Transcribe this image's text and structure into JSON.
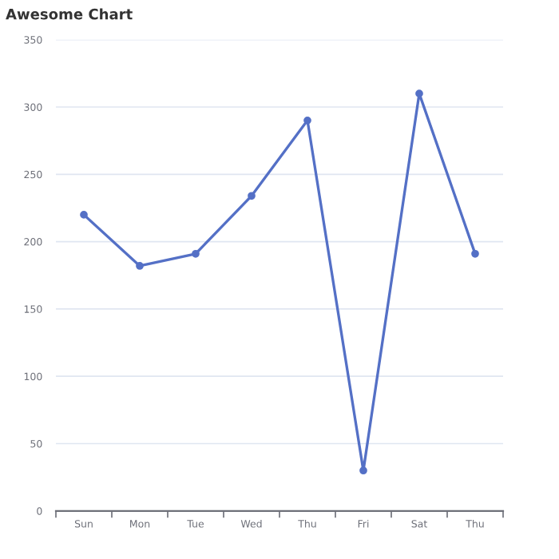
{
  "chart_data": {
    "type": "line",
    "title": "Awesome Chart",
    "categories": [
      "Sun",
      "Mon",
      "Tue",
      "Wed",
      "Thu",
      "Fri",
      "Sat",
      "Thu"
    ],
    "series": [
      {
        "color": "#5470c6",
        "values": [
          220,
          182,
          191,
          234,
          290,
          30,
          310,
          191
        ]
      }
    ],
    "ylim": [
      0,
      350
    ],
    "yticks": [
      0,
      50,
      100,
      150,
      200,
      250,
      300,
      350
    ],
    "grid": "y",
    "marker": "circle",
    "line_style": "solid"
  }
}
